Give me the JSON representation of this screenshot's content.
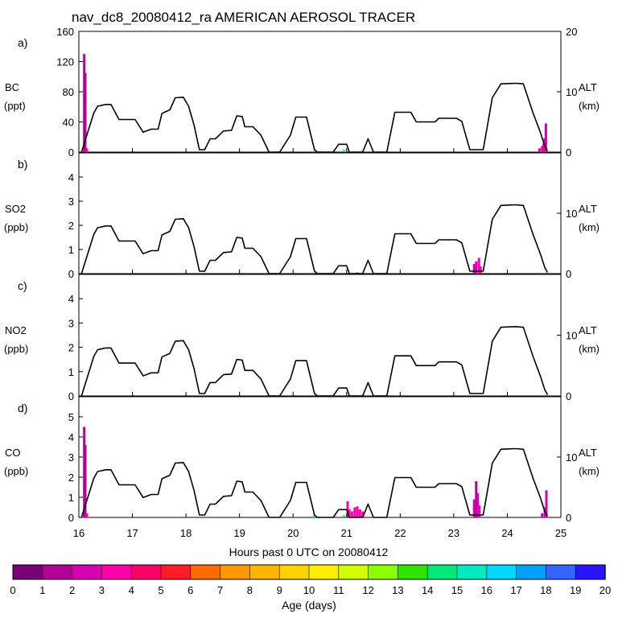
{
  "chart_data": {
    "type": "line",
    "title": "nav_dc8_20080412_ra AMERICAN AEROSOL TRACER",
    "xlabel": "Hours past 0 UTC on 20080412",
    "xlim": [
      16,
      25
    ],
    "x_ticks": [
      "16",
      "17",
      "18",
      "19",
      "20",
      "21",
      "22",
      "23",
      "24",
      "25"
    ],
    "altitude_axis": {
      "label": "ALT",
      "unit": "(km)",
      "ylim": [
        0,
        20
      ],
      "ticks": [
        "0",
        "10",
        "20"
      ]
    },
    "altitude_series": {
      "name": "ALT (km)",
      "points": [
        [
          16.05,
          0
        ],
        [
          16.28,
          6.5
        ],
        [
          16.35,
          7.6
        ],
        [
          16.5,
          7.9
        ],
        [
          16.6,
          7.9
        ],
        [
          16.75,
          5.4
        ],
        [
          16.85,
          5.4
        ],
        [
          17.05,
          5.4
        ],
        [
          17.2,
          3.3
        ],
        [
          17.35,
          3.8
        ],
        [
          17.48,
          3.8
        ],
        [
          17.55,
          6.4
        ],
        [
          17.7,
          7.0
        ],
        [
          17.8,
          9.0
        ],
        [
          17.95,
          9.1
        ],
        [
          18.05,
          7.6
        ],
        [
          18.15,
          4.5
        ],
        [
          18.25,
          0.4
        ],
        [
          18.35,
          0.4
        ],
        [
          18.45,
          2.2
        ],
        [
          18.55,
          2.2
        ],
        [
          18.7,
          3.5
        ],
        [
          18.85,
          3.6
        ],
        [
          18.95,
          6.0
        ],
        [
          19.05,
          5.9
        ],
        [
          19.1,
          4.2
        ],
        [
          19.25,
          4.2
        ],
        [
          19.4,
          2.8
        ],
        [
          19.55,
          0
        ],
        [
          19.75,
          0
        ],
        [
          19.95,
          2.8
        ],
        [
          20.05,
          5.8
        ],
        [
          20.25,
          5.8
        ],
        [
          20.4,
          0.4
        ],
        [
          20.45,
          0
        ],
        [
          20.75,
          0
        ],
        [
          20.85,
          1.3
        ],
        [
          21.0,
          1.3
        ],
        [
          21.05,
          0
        ],
        [
          21.3,
          0
        ],
        [
          21.4,
          2.2
        ],
        [
          21.5,
          0
        ],
        [
          21.75,
          0
        ],
        [
          21.9,
          6.6
        ],
        [
          22.2,
          6.6
        ],
        [
          22.3,
          5.0
        ],
        [
          22.65,
          5.0
        ],
        [
          22.72,
          5.6
        ],
        [
          23.05,
          5.6
        ],
        [
          23.15,
          5.1
        ],
        [
          23.3,
          0.4
        ],
        [
          23.55,
          0.4
        ],
        [
          23.72,
          9.0
        ],
        [
          23.88,
          11.3
        ],
        [
          24.15,
          11.4
        ],
        [
          24.3,
          11.3
        ],
        [
          24.48,
          6.5
        ],
        [
          24.62,
          3.2
        ],
        [
          24.7,
          1.0
        ],
        [
          24.75,
          0.2
        ]
      ]
    },
    "legend": {
      "colorbar_ticks": [
        "0",
        "1",
        "2",
        "3",
        "4",
        "5",
        "6",
        "7",
        "8",
        "9",
        "10",
        "11",
        "12",
        "13",
        "14",
        "15",
        "16",
        "17",
        "18",
        "19",
        "20"
      ],
      "colorbar_label": "Age (days)",
      "colors": [
        "#7a0078",
        "#b40096",
        "#d600b4",
        "#ff00aa",
        "#ff0066",
        "#ff1a28",
        "#ff6a00",
        "#ff9800",
        "#ffb400",
        "#ffd200",
        "#ffee00",
        "#d2ff00",
        "#8cff00",
        "#2ce400",
        "#00e87a",
        "#00ecc0",
        "#00d7ff",
        "#00a0ff",
        "#3264ff",
        "#2814ff",
        "#7a28ff"
      ]
    },
    "panels": [
      {
        "letter": "a)",
        "species": "BC",
        "unit": "(ppt)",
        "ylim": [
          0,
          160
        ],
        "y_ticks": [
          0,
          40,
          80,
          120,
          160
        ],
        "alt_ticks_shown": [
          "0",
          "10",
          "20"
        ],
        "bars": [
          {
            "x": 16.1,
            "v": 130,
            "age": 1
          },
          {
            "x": 16.12,
            "v": 105,
            "age": 1
          },
          {
            "x": 16.15,
            "v": 5,
            "age": 3
          },
          {
            "x": 20.4,
            "v": 2,
            "age": 14
          },
          {
            "x": 20.95,
            "v": 3,
            "age": 14
          },
          {
            "x": 24.6,
            "v": 5,
            "age": 2
          },
          {
            "x": 24.65,
            "v": 8,
            "age": 2
          },
          {
            "x": 24.68,
            "v": 12,
            "age": 2
          },
          {
            "x": 24.7,
            "v": 18,
            "age": 2
          },
          {
            "x": 24.72,
            "v": 38,
            "age": 2
          }
        ]
      },
      {
        "letter": "b)",
        "species": "SO2",
        "unit": "(ppb)",
        "ylim": [
          0,
          5
        ],
        "y_ticks": [
          0,
          1,
          2,
          3,
          4
        ],
        "alt_ticks_shown": [
          "0",
          "10"
        ],
        "bars": [
          {
            "x": 21.2,
            "v": 0.05,
            "age": 3
          },
          {
            "x": 23.38,
            "v": 0.4,
            "age": 2
          },
          {
            "x": 23.42,
            "v": 0.5,
            "age": 2
          },
          {
            "x": 23.47,
            "v": 0.65,
            "age": 3
          },
          {
            "x": 23.5,
            "v": 0.3,
            "age": 3
          }
        ]
      },
      {
        "letter": "c)",
        "species": "NO2",
        "unit": "(ppb)",
        "ylim": [
          0,
          5
        ],
        "y_ticks": [
          0,
          1,
          2,
          3,
          4
        ],
        "alt_ticks_shown": [
          "0",
          "10"
        ],
        "bars": []
      },
      {
        "letter": "d)",
        "species": "CO",
        "unit": "(ppb)",
        "ylim": [
          0,
          6
        ],
        "y_ticks": [
          0,
          1,
          2,
          3,
          4,
          5
        ],
        "alt_ticks_shown": [
          "0",
          "10"
        ],
        "bars": [
          {
            "x": 16.1,
            "v": 4.5,
            "age": 1
          },
          {
            "x": 16.12,
            "v": 3.6,
            "age": 1
          },
          {
            "x": 16.15,
            "v": 0.2,
            "age": 3
          },
          {
            "x": 20.4,
            "v": 0.1,
            "age": 14
          },
          {
            "x": 20.95,
            "v": 0.1,
            "age": 14
          },
          {
            "x": 21.02,
            "v": 0.8,
            "age": 3
          },
          {
            "x": 21.05,
            "v": 0.4,
            "age": 3
          },
          {
            "x": 21.1,
            "v": 0.3,
            "age": 3
          },
          {
            "x": 21.15,
            "v": 0.5,
            "age": 3
          },
          {
            "x": 21.2,
            "v": 0.55,
            "age": 3
          },
          {
            "x": 21.25,
            "v": 0.4,
            "age": 3
          },
          {
            "x": 21.3,
            "v": 0.3,
            "age": 3
          },
          {
            "x": 23.38,
            "v": 0.9,
            "age": 2
          },
          {
            "x": 23.42,
            "v": 1.8,
            "age": 1
          },
          {
            "x": 23.45,
            "v": 1.2,
            "age": 2
          },
          {
            "x": 23.48,
            "v": 0.6,
            "age": 3
          },
          {
            "x": 24.65,
            "v": 0.2,
            "age": 2
          },
          {
            "x": 24.7,
            "v": 0.5,
            "age": 2
          },
          {
            "x": 24.73,
            "v": 1.35,
            "age": 2
          }
        ]
      }
    ]
  }
}
